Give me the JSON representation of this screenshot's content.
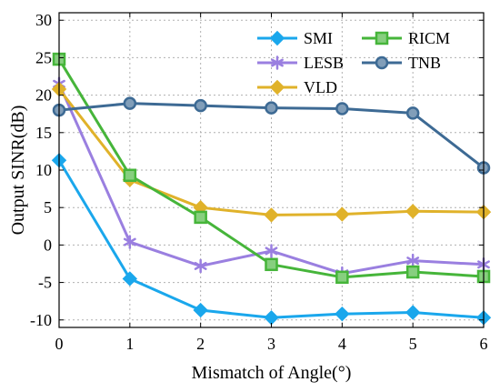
{
  "chart_data": {
    "type": "line",
    "title": "",
    "xlabel": "Mismatch of Angle(°)",
    "ylabel": "Output SINR(dB)",
    "x": [
      0,
      1,
      2,
      3,
      4,
      5,
      6
    ],
    "xlim": [
      0,
      6
    ],
    "ylim": [
      -11,
      31
    ],
    "xticks": [
      0,
      1,
      2,
      3,
      4,
      5,
      6
    ],
    "yticks": [
      -10,
      -5,
      0,
      5,
      10,
      15,
      20,
      25,
      30
    ],
    "grid": true,
    "legend_position": "top-right",
    "series": [
      {
        "name": "SMI",
        "color": "#1aa7ec",
        "marker": "diamond",
        "values": [
          11.3,
          -4.5,
          -8.7,
          -9.7,
          -9.2,
          -9.0,
          -9.7
        ]
      },
      {
        "name": "LESB",
        "color": "#9a7fe0",
        "marker": "asterisk",
        "values": [
          21.5,
          0.4,
          -2.8,
          -0.8,
          -3.8,
          -2.1,
          -2.6
        ]
      },
      {
        "name": "VLD",
        "color": "#e0b22a",
        "marker": "diamond",
        "values": [
          20.8,
          8.7,
          5.0,
          4.0,
          4.1,
          4.5,
          4.4
        ]
      },
      {
        "name": "RICM",
        "color": "#46b53a",
        "marker": "square",
        "values": [
          24.8,
          9.3,
          3.7,
          -2.6,
          -4.3,
          -3.6,
          -4.2
        ]
      },
      {
        "name": "TNB",
        "color": "#3d6a94",
        "marker": "circle",
        "values": [
          18.0,
          18.9,
          18.6,
          18.3,
          18.2,
          17.6,
          10.3
        ]
      }
    ]
  }
}
